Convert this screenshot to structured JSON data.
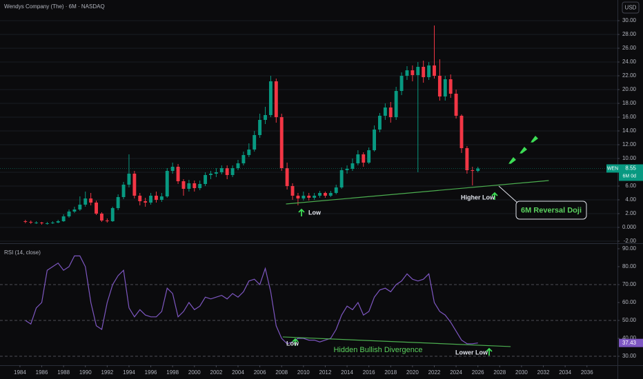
{
  "chart_data": [
    {
      "type": "candlestick",
      "title": "Wendys Company (The) · 6M · NASDAQ",
      "currency": "USD",
      "symbol": "WEN",
      "countdown": "6M 0d",
      "up_color": "#089981",
      "down_color": "#f23645",
      "xlim": [
        1982.17,
        2038.8
      ],
      "ylim": [
        -2.2,
        33
      ],
      "yticks": [
        {
          "value": -2,
          "label": "-2.00"
        },
        {
          "value": 0,
          "label": "0.000"
        },
        {
          "value": 2,
          "label": "2.00"
        },
        {
          "value": 4,
          "label": "4.00"
        },
        {
          "value": 6,
          "label": "6.00"
        },
        {
          "value": 8,
          "label": "8.00"
        },
        {
          "value": 10,
          "label": "10.00"
        },
        {
          "value": 12,
          "label": "12.00"
        },
        {
          "value": 14,
          "label": "14.00"
        },
        {
          "value": 16,
          "label": "16.00"
        },
        {
          "value": 18,
          "label": "18.00"
        },
        {
          "value": 20,
          "label": "20.00"
        },
        {
          "value": 22,
          "label": "22.00"
        },
        {
          "value": 24,
          "label": "24.00"
        },
        {
          "value": 26,
          "label": "26.00"
        },
        {
          "value": 28,
          "label": "28.00"
        },
        {
          "value": 30,
          "label": "30.00"
        }
      ],
      "x": [
        1984.5,
        1985,
        1985.5,
        1986,
        1986.5,
        1987,
        1987.5,
        1988,
        1988.5,
        1989,
        1989.5,
        1990,
        1990.5,
        1991,
        1991.5,
        1992,
        1992.5,
        1993,
        1993.5,
        1994,
        1994.5,
        1995,
        1995.5,
        1996,
        1996.5,
        1997,
        1997.5,
        1998,
        1998.5,
        1999,
        1999.5,
        2000,
        2000.5,
        2001,
        2001.5,
        2002,
        2002.5,
        2003,
        2003.5,
        2004,
        2004.5,
        2005,
        2005.5,
        2006,
        2006.5,
        2007,
        2007.5,
        2008,
        2008.5,
        2009,
        2009.5,
        2010,
        2010.5,
        2011,
        2011.5,
        2012,
        2012.5,
        2013,
        2013.5,
        2014,
        2014.5,
        2015,
        2015.5,
        2016,
        2016.5,
        2017,
        2017.5,
        2018,
        2018.5,
        2019,
        2019.5,
        2020,
        2020.5,
        2021,
        2021.5,
        2022,
        2022.5,
        2023,
        2023.5,
        2024,
        2024.5,
        2025,
        2025.5,
        2026
      ],
      "open": [
        0.9,
        0.8,
        0.7,
        0.7,
        0.6,
        0.6,
        0.7,
        0.9,
        1.6,
        2.3,
        2.6,
        3.3,
        4.2,
        3.6,
        2.0,
        1.0,
        0.9,
        2.8,
        4.4,
        6.2,
        7.8,
        4.6,
        3.8,
        3.6,
        4.6,
        4.0,
        4.5,
        8.2,
        8.8,
        6.7,
        5.6,
        6.4,
        5.7,
        6.3,
        7.6,
        7.8,
        8.0,
        8.6,
        7.6,
        8.6,
        9.3,
        10.5,
        11.3,
        13.4,
        15.6,
        16.3,
        21.2,
        16.0,
        8.6,
        6.0,
        4.6,
        4.2,
        4.6,
        4.3,
        4.6,
        5.0,
        4.6,
        5.0,
        5.8,
        8.3,
        8.5,
        9.3,
        10.6,
        9.4,
        11.2,
        14.2,
        16.2,
        17.4,
        16.0,
        19.8,
        22.0,
        22.8,
        22.1,
        23.3,
        21.8,
        23.5,
        22.0,
        19.0,
        21.5,
        19.4,
        16.2,
        11.5,
        8.3,
        8.2
      ],
      "high": [
        1.1,
        1.0,
        0.9,
        0.8,
        0.8,
        0.9,
        1.1,
        1.9,
        2.6,
        3.0,
        4.5,
        5.2,
        5.0,
        3.9,
        2.2,
        1.3,
        3.0,
        4.8,
        6.6,
        10.6,
        8.2,
        5.0,
        4.3,
        5.0,
        5.2,
        5.0,
        8.6,
        9.4,
        9.2,
        7.0,
        6.9,
        6.8,
        6.8,
        8.0,
        8.2,
        8.6,
        9.0,
        9.0,
        9.0,
        9.8,
        11.0,
        12.2,
        14.0,
        16.5,
        17.5,
        22.0,
        21.6,
        16.5,
        9.4,
        6.4,
        5.0,
        5.2,
        5.0,
        5.0,
        5.3,
        5.2,
        5.3,
        6.2,
        8.7,
        9.0,
        10.0,
        11.2,
        10.9,
        11.6,
        14.8,
        16.6,
        18.0,
        18.2,
        20.4,
        22.5,
        23.4,
        23.5,
        24.0,
        24.2,
        24.0,
        29.3,
        24.4,
        22.0,
        22.2,
        20.0,
        16.4,
        11.8,
        8.8,
        8.8
      ],
      "low": [
        0.6,
        0.5,
        0.5,
        0.4,
        0.4,
        0.5,
        0.6,
        0.8,
        1.4,
        2.1,
        2.4,
        3.0,
        3.2,
        1.8,
        0.8,
        0.7,
        0.8,
        2.5,
        4.1,
        5.8,
        4.2,
        3.2,
        3.0,
        3.3,
        3.6,
        3.7,
        4.3,
        7.8,
        6.3,
        4.6,
        5.2,
        5.2,
        5.4,
        6.0,
        7.0,
        7.3,
        7.7,
        7.0,
        7.3,
        8.3,
        9.0,
        10.2,
        11.0,
        13.0,
        15.0,
        16.0,
        15.2,
        8.2,
        5.5,
        4.0,
        3.2,
        3.9,
        3.9,
        4.0,
        4.3,
        4.3,
        4.4,
        4.8,
        5.6,
        7.8,
        8.2,
        9.0,
        8.8,
        9.2,
        11.0,
        13.8,
        15.6,
        15.2,
        15.6,
        19.2,
        21.4,
        21.2,
        8.0,
        21.0,
        21.4,
        21.6,
        18.4,
        18.4,
        18.8,
        15.8,
        10.8,
        7.8,
        6.1,
        8.0
      ],
      "close": [
        0.8,
        0.7,
        0.7,
        0.6,
        0.6,
        0.7,
        0.9,
        1.6,
        2.3,
        2.6,
        3.3,
        4.2,
        3.6,
        2.0,
        1.0,
        0.9,
        2.8,
        4.4,
        6.2,
        7.8,
        4.6,
        3.8,
        3.6,
        4.6,
        4.0,
        4.5,
        8.2,
        8.8,
        6.7,
        5.6,
        6.4,
        5.7,
        6.3,
        7.6,
        7.8,
        8.0,
        8.6,
        7.6,
        8.6,
        9.3,
        10.5,
        11.3,
        13.4,
        15.6,
        16.3,
        21.2,
        16.0,
        8.6,
        6.0,
        4.6,
        4.2,
        4.6,
        4.3,
        4.6,
        5.0,
        4.6,
        5.0,
        5.8,
        8.3,
        8.5,
        9.3,
        10.6,
        9.4,
        11.2,
        14.2,
        16.2,
        17.4,
        16.0,
        19.8,
        22.0,
        22.8,
        22.1,
        23.3,
        21.8,
        23.5,
        22.0,
        19.0,
        21.5,
        19.4,
        16.2,
        11.5,
        8.3,
        8.2,
        8.55
      ],
      "trendline": {
        "x": [
          2008.4,
          2032.5
        ],
        "y": [
          3.4,
          6.8
        ],
        "color": "#4caf50"
      },
      "annotations": {
        "low": "Low",
        "higher_low": "Higher Low",
        "callout": "6M Reversal Doji"
      }
    },
    {
      "type": "line",
      "title": "RSI (14, close)",
      "color": "#7e57c2",
      "xlim": [
        1982.17,
        2038.8
      ],
      "ylim": [
        25,
        92.3
      ],
      "yticks": [
        {
          "value": 30,
          "label": "30.00"
        },
        {
          "value": 40,
          "label": "40.00"
        },
        {
          "value": 50,
          "label": "50.00"
        },
        {
          "value": 60,
          "label": "60.00"
        },
        {
          "value": 70,
          "label": "70.00"
        },
        {
          "value": 80,
          "label": "80.00"
        },
        {
          "value": 90,
          "label": "90.00"
        }
      ],
      "xticks": [
        1984,
        1986,
        1988,
        1990,
        1992,
        1994,
        1996,
        1998,
        2000,
        2002,
        2004,
        2006,
        2008,
        2010,
        2012,
        2014,
        2016,
        2018,
        2020,
        2022,
        2024,
        2026,
        2028,
        2030,
        2032,
        2034,
        2036
      ],
      "values": [
        50,
        48,
        57,
        60,
        78,
        80,
        82,
        78,
        80,
        86,
        86,
        80,
        60,
        47,
        45,
        60,
        70,
        75,
        78,
        57,
        52,
        56,
        53,
        52,
        52,
        55,
        68,
        65,
        52,
        55,
        60,
        56,
        58,
        63,
        62,
        63,
        64,
        62,
        65,
        63,
        66,
        72,
        73,
        70,
        79,
        66,
        47,
        40,
        37,
        38,
        40,
        40,
        39,
        39,
        38,
        39,
        40,
        45,
        53,
        58,
        56,
        60,
        53,
        55,
        63,
        67,
        68,
        66,
        70,
        72,
        76,
        73,
        72,
        73,
        76,
        60,
        55,
        53,
        49,
        44,
        39,
        37,
        37,
        37.43
      ],
      "trendline": {
        "x": [
          2008.1,
          2029
        ],
        "y": [
          40.8,
          35.4
        ],
        "color": "#4caf50"
      },
      "annotations": {
        "low": "Low",
        "lower_low": "Lower Low",
        "divergence": "Hidden Bullish Divergence"
      }
    }
  ]
}
